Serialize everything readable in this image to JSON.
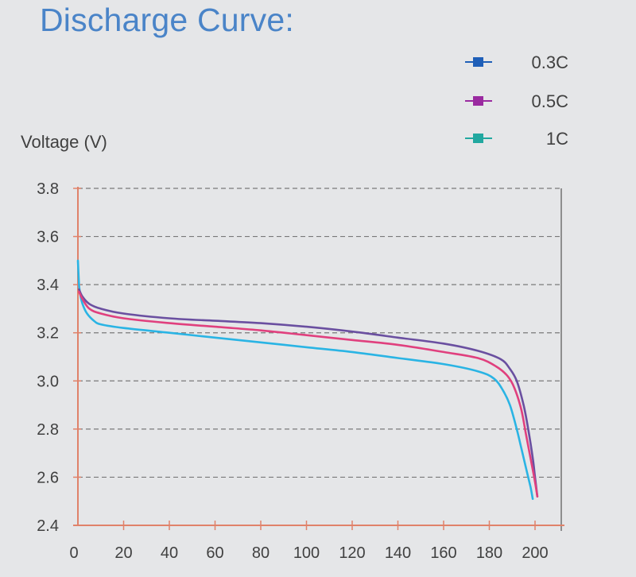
{
  "chart_data": {
    "type": "line",
    "title": "Discharge Curve:",
    "xlabel": "",
    "ylabel": "Voltage (V)",
    "xlim": [
      0,
      210
    ],
    "ylim": [
      2.4,
      3.8
    ],
    "x_ticks": [
      0,
      20,
      40,
      60,
      80,
      100,
      120,
      140,
      160,
      180,
      200
    ],
    "x_tick_labels": [
      "0",
      "20",
      "40",
      "60",
      "80",
      "100",
      "120",
      "140",
      "160",
      "180",
      "200"
    ],
    "y_ticks": [
      2.4,
      2.6,
      2.8,
      3.0,
      3.2,
      3.4,
      3.6,
      3.8
    ],
    "y_tick_labels": [
      "2.4",
      "2.6",
      "2.8",
      "3.0",
      "3.2",
      "3.4",
      "3.6",
      "3.8"
    ],
    "grid": "horizontal dashed",
    "legend_position": "top-right",
    "series": [
      {
        "name": "0.3C",
        "legend_color": "#1f5fb8",
        "line_color": "#6a4fa0",
        "x": [
          0.5,
          2,
          5,
          10,
          20,
          40,
          60,
          80,
          100,
          120,
          140,
          160,
          175,
          185,
          189,
          192,
          195,
          197,
          199,
          200,
          201
        ],
        "y": [
          3.38,
          3.35,
          3.32,
          3.3,
          3.28,
          3.26,
          3.25,
          3.24,
          3.225,
          3.205,
          3.18,
          3.155,
          3.125,
          3.09,
          3.05,
          3.0,
          2.9,
          2.8,
          2.68,
          2.6,
          2.52
        ]
      },
      {
        "name": "0.5C",
        "legend_color": "#9a2aa0",
        "line_color": "#e0407e",
        "x": [
          0.5,
          2,
          5,
          10,
          20,
          40,
          60,
          80,
          100,
          120,
          140,
          160,
          175,
          183,
          188,
          191,
          194,
          196,
          198,
          200,
          201
        ],
        "y": [
          3.37,
          3.34,
          3.3,
          3.28,
          3.26,
          3.24,
          3.225,
          3.21,
          3.19,
          3.17,
          3.15,
          3.12,
          3.095,
          3.06,
          3.02,
          2.97,
          2.88,
          2.78,
          2.68,
          2.58,
          2.52
        ]
      },
      {
        "name": "1C",
        "legend_color": "#22a8a0",
        "line_color": "#2ab4e4",
        "x": [
          0,
          0.5,
          1,
          2,
          4,
          7,
          10,
          20,
          40,
          60,
          80,
          100,
          120,
          140,
          160,
          175,
          182,
          186,
          189,
          192,
          194,
          196,
          198,
          199
        ],
        "y": [
          3.5,
          3.4,
          3.36,
          3.32,
          3.28,
          3.25,
          3.235,
          3.22,
          3.2,
          3.18,
          3.16,
          3.14,
          3.12,
          3.095,
          3.07,
          3.04,
          3.01,
          2.96,
          2.9,
          2.8,
          2.72,
          2.64,
          2.56,
          2.51
        ]
      }
    ]
  },
  "axis_color": "#e0826a",
  "grid_color": "#7a7a7a"
}
